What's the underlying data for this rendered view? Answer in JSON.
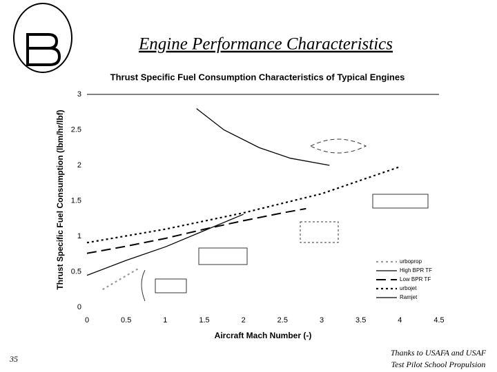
{
  "slide_title": "Engine Performance Characteristics",
  "page_number": "35",
  "credit": [
    "Thanks to USAFA and USAF",
    "Test Pilot School Propulsion"
  ],
  "chart_data": {
    "type": "line",
    "title": "Thrust Specific  Fuel Consumption Characteristics of Typical Engines",
    "x_label": "Aircraft Mach Number (-)",
    "y_label": "Thrust Specific Fuel Consumption (lbm/hr/lbf)",
    "xlim": [
      0,
      4.5
    ],
    "ylim": [
      0,
      3
    ],
    "xticks": [
      0,
      0.5,
      1,
      1.5,
      2,
      2.5,
      3,
      3.5,
      4,
      4.5
    ],
    "yticks": [
      0,
      0.5,
      1,
      1.5,
      2,
      2.5,
      3
    ],
    "legend": "lower right",
    "series": [
      {
        "name": "urboprop",
        "color": "#999999",
        "style": "dotted",
        "x": [
          0.2,
          0.4,
          0.65
        ],
        "values": [
          0.25,
          0.38,
          0.54
        ]
      },
      {
        "name": "High BPR TF",
        "color": "#000000",
        "style": "solid",
        "x": [
          0,
          0.5,
          1,
          1.5,
          2
        ],
        "values": [
          0.45,
          0.66,
          0.85,
          1.08,
          1.31
        ]
      },
      {
        "name": "Low BPR TF",
        "color": "#000000",
        "style": "dashed",
        "x": [
          0,
          0.5,
          1,
          1.5,
          2,
          2.5,
          2.8
        ],
        "values": [
          0.76,
          0.86,
          0.97,
          1.1,
          1.22,
          1.33,
          1.39
        ]
      },
      {
        "name": "urbojet",
        "color": "#000000",
        "style": "dotted",
        "x": [
          0,
          1,
          2,
          3,
          4
        ],
        "values": [
          0.91,
          1.1,
          1.33,
          1.6,
          1.98
        ]
      },
      {
        "name": "Ramjet",
        "color": "#000000",
        "style": "solid",
        "x": [
          1.4,
          1.75,
          2.2,
          2.6,
          3.1
        ],
        "values": [
          2.8,
          2.5,
          2.25,
          2.1,
          2.0
        ]
      }
    ]
  }
}
